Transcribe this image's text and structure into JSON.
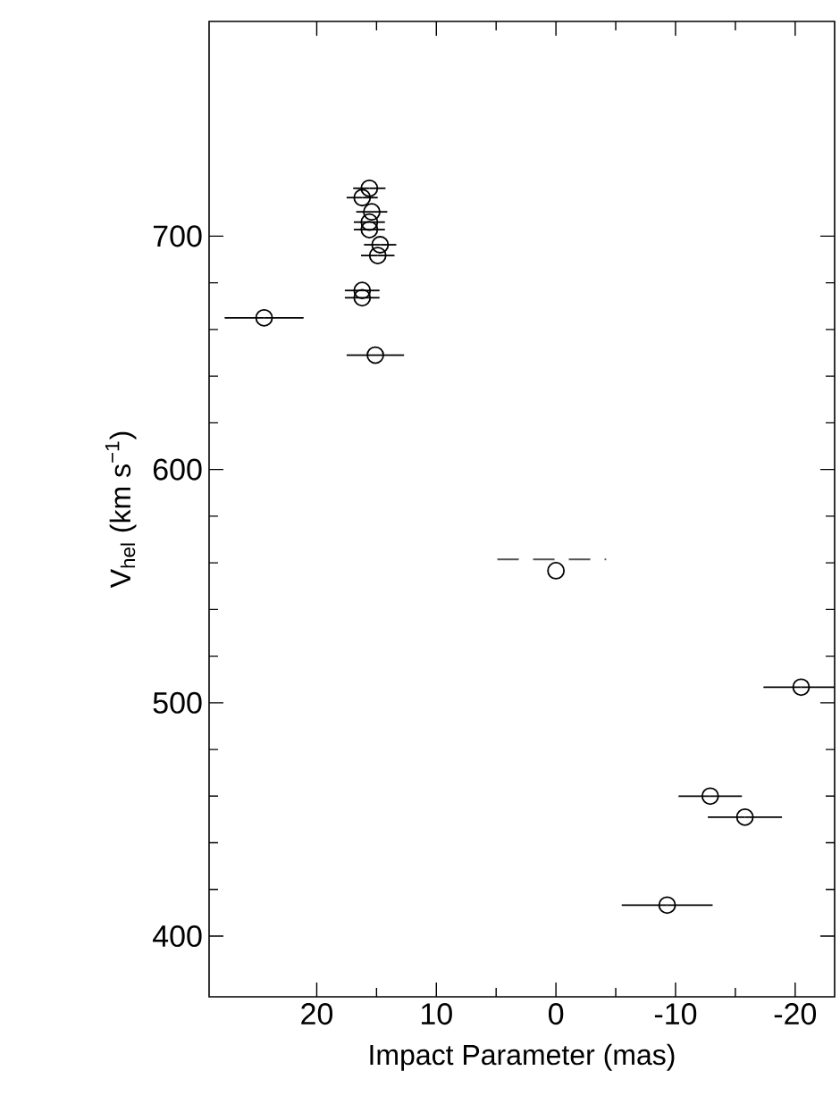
{
  "chart_data": {
    "type": "scatter",
    "xlabel": "Impact Parameter (mas)",
    "ylabel": "V$_{hel}$ (km s$^{−1}$)",
    "xlim": [
      29,
      -23.3
    ],
    "ylim": [
      374,
      792
    ],
    "xticks": [
      20,
      10,
      0,
      -10,
      -20
    ],
    "yticks": [
      400,
      500,
      600,
      700
    ],
    "grid": false,
    "series": [
      {
        "marker": "circle",
        "color": "#000000",
        "x": [
          24.4,
          15.6,
          16.2,
          15.4,
          15.6,
          15.6,
          14.7,
          14.9,
          16.2,
          16.2,
          15.1,
          0,
          -20.5,
          -12.9,
          -15.8,
          -9.3
        ],
        "values": [
          665,
          720.5,
          716.5,
          710.4,
          706,
          702.8,
          696.3,
          691.7,
          676.7,
          673.6,
          649,
          556.6,
          506.7,
          460,
          451,
          413.3
        ],
        "xerrors": [
          3.3,
          1.35,
          1.3,
          1.3,
          1.3,
          1.3,
          1.35,
          1.4,
          1.45,
          1.45,
          2.4,
          null,
          3.15,
          2.65,
          3.1,
          3.8
        ]
      },
      {
        "type": "line",
        "marker": "none",
        "line_style": "dashed",
        "color": "#555555",
        "x": [
          4.9,
          -4.2
        ],
        "values": [
          561.5,
          561.5
        ]
      }
    ]
  }
}
